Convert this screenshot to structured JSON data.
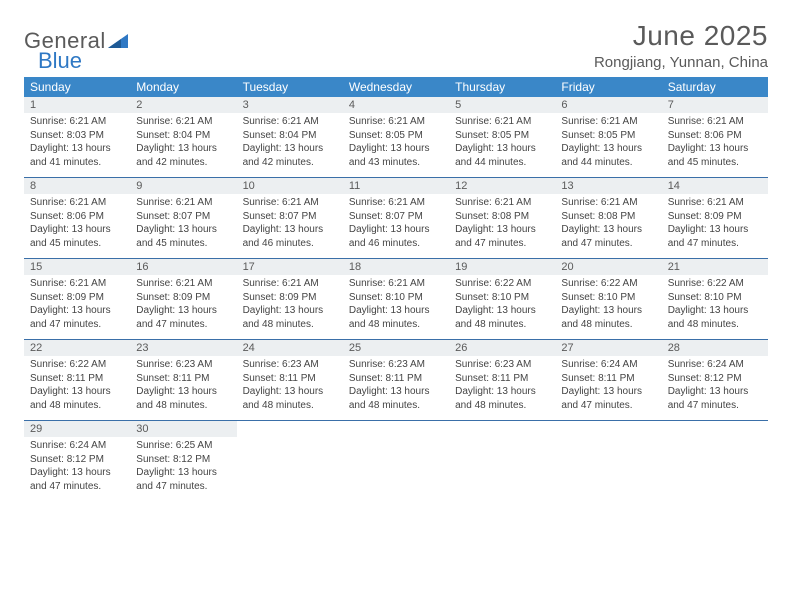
{
  "brand": {
    "part1": "General",
    "part2": "Blue"
  },
  "title": "June 2025",
  "location": "Rongjiang, Yunnan, China",
  "colors": {
    "header_bar": "#3a87c8",
    "row_divider": "#3a6fa8",
    "daynum_bg": "#eceff1",
    "text_muted": "#5a5a5a",
    "body_text": "#444444",
    "brand_blue": "#2f78c4",
    "background": "#ffffff"
  },
  "typography": {
    "title_fontsize": 28,
    "location_fontsize": 15,
    "dow_fontsize": 12,
    "daynum_fontsize": 11,
    "body_fontsize": 10
  },
  "dow": [
    "Sunday",
    "Monday",
    "Tuesday",
    "Wednesday",
    "Thursday",
    "Friday",
    "Saturday"
  ],
  "weeks": [
    [
      {
        "n": "1",
        "sr": "Sunrise: 6:21 AM",
        "ss": "Sunset: 8:03 PM",
        "d1": "Daylight: 13 hours",
        "d2": "and 41 minutes."
      },
      {
        "n": "2",
        "sr": "Sunrise: 6:21 AM",
        "ss": "Sunset: 8:04 PM",
        "d1": "Daylight: 13 hours",
        "d2": "and 42 minutes."
      },
      {
        "n": "3",
        "sr": "Sunrise: 6:21 AM",
        "ss": "Sunset: 8:04 PM",
        "d1": "Daylight: 13 hours",
        "d2": "and 42 minutes."
      },
      {
        "n": "4",
        "sr": "Sunrise: 6:21 AM",
        "ss": "Sunset: 8:05 PM",
        "d1": "Daylight: 13 hours",
        "d2": "and 43 minutes."
      },
      {
        "n": "5",
        "sr": "Sunrise: 6:21 AM",
        "ss": "Sunset: 8:05 PM",
        "d1": "Daylight: 13 hours",
        "d2": "and 44 minutes."
      },
      {
        "n": "6",
        "sr": "Sunrise: 6:21 AM",
        "ss": "Sunset: 8:05 PM",
        "d1": "Daylight: 13 hours",
        "d2": "and 44 minutes."
      },
      {
        "n": "7",
        "sr": "Sunrise: 6:21 AM",
        "ss": "Sunset: 8:06 PM",
        "d1": "Daylight: 13 hours",
        "d2": "and 45 minutes."
      }
    ],
    [
      {
        "n": "8",
        "sr": "Sunrise: 6:21 AM",
        "ss": "Sunset: 8:06 PM",
        "d1": "Daylight: 13 hours",
        "d2": "and 45 minutes."
      },
      {
        "n": "9",
        "sr": "Sunrise: 6:21 AM",
        "ss": "Sunset: 8:07 PM",
        "d1": "Daylight: 13 hours",
        "d2": "and 45 minutes."
      },
      {
        "n": "10",
        "sr": "Sunrise: 6:21 AM",
        "ss": "Sunset: 8:07 PM",
        "d1": "Daylight: 13 hours",
        "d2": "and 46 minutes."
      },
      {
        "n": "11",
        "sr": "Sunrise: 6:21 AM",
        "ss": "Sunset: 8:07 PM",
        "d1": "Daylight: 13 hours",
        "d2": "and 46 minutes."
      },
      {
        "n": "12",
        "sr": "Sunrise: 6:21 AM",
        "ss": "Sunset: 8:08 PM",
        "d1": "Daylight: 13 hours",
        "d2": "and 47 minutes."
      },
      {
        "n": "13",
        "sr": "Sunrise: 6:21 AM",
        "ss": "Sunset: 8:08 PM",
        "d1": "Daylight: 13 hours",
        "d2": "and 47 minutes."
      },
      {
        "n": "14",
        "sr": "Sunrise: 6:21 AM",
        "ss": "Sunset: 8:09 PM",
        "d1": "Daylight: 13 hours",
        "d2": "and 47 minutes."
      }
    ],
    [
      {
        "n": "15",
        "sr": "Sunrise: 6:21 AM",
        "ss": "Sunset: 8:09 PM",
        "d1": "Daylight: 13 hours",
        "d2": "and 47 minutes."
      },
      {
        "n": "16",
        "sr": "Sunrise: 6:21 AM",
        "ss": "Sunset: 8:09 PM",
        "d1": "Daylight: 13 hours",
        "d2": "and 47 minutes."
      },
      {
        "n": "17",
        "sr": "Sunrise: 6:21 AM",
        "ss": "Sunset: 8:09 PM",
        "d1": "Daylight: 13 hours",
        "d2": "and 48 minutes."
      },
      {
        "n": "18",
        "sr": "Sunrise: 6:21 AM",
        "ss": "Sunset: 8:10 PM",
        "d1": "Daylight: 13 hours",
        "d2": "and 48 minutes."
      },
      {
        "n": "19",
        "sr": "Sunrise: 6:22 AM",
        "ss": "Sunset: 8:10 PM",
        "d1": "Daylight: 13 hours",
        "d2": "and 48 minutes."
      },
      {
        "n": "20",
        "sr": "Sunrise: 6:22 AM",
        "ss": "Sunset: 8:10 PM",
        "d1": "Daylight: 13 hours",
        "d2": "and 48 minutes."
      },
      {
        "n": "21",
        "sr": "Sunrise: 6:22 AM",
        "ss": "Sunset: 8:10 PM",
        "d1": "Daylight: 13 hours",
        "d2": "and 48 minutes."
      }
    ],
    [
      {
        "n": "22",
        "sr": "Sunrise: 6:22 AM",
        "ss": "Sunset: 8:11 PM",
        "d1": "Daylight: 13 hours",
        "d2": "and 48 minutes."
      },
      {
        "n": "23",
        "sr": "Sunrise: 6:23 AM",
        "ss": "Sunset: 8:11 PM",
        "d1": "Daylight: 13 hours",
        "d2": "and 48 minutes."
      },
      {
        "n": "24",
        "sr": "Sunrise: 6:23 AM",
        "ss": "Sunset: 8:11 PM",
        "d1": "Daylight: 13 hours",
        "d2": "and 48 minutes."
      },
      {
        "n": "25",
        "sr": "Sunrise: 6:23 AM",
        "ss": "Sunset: 8:11 PM",
        "d1": "Daylight: 13 hours",
        "d2": "and 48 minutes."
      },
      {
        "n": "26",
        "sr": "Sunrise: 6:23 AM",
        "ss": "Sunset: 8:11 PM",
        "d1": "Daylight: 13 hours",
        "d2": "and 48 minutes."
      },
      {
        "n": "27",
        "sr": "Sunrise: 6:24 AM",
        "ss": "Sunset: 8:11 PM",
        "d1": "Daylight: 13 hours",
        "d2": "and 47 minutes."
      },
      {
        "n": "28",
        "sr": "Sunrise: 6:24 AM",
        "ss": "Sunset: 8:12 PM",
        "d1": "Daylight: 13 hours",
        "d2": "and 47 minutes."
      }
    ],
    [
      {
        "n": "29",
        "sr": "Sunrise: 6:24 AM",
        "ss": "Sunset: 8:12 PM",
        "d1": "Daylight: 13 hours",
        "d2": "and 47 minutes."
      },
      {
        "n": "30",
        "sr": "Sunrise: 6:25 AM",
        "ss": "Sunset: 8:12 PM",
        "d1": "Daylight: 13 hours",
        "d2": "and 47 minutes."
      },
      null,
      null,
      null,
      null,
      null
    ]
  ]
}
